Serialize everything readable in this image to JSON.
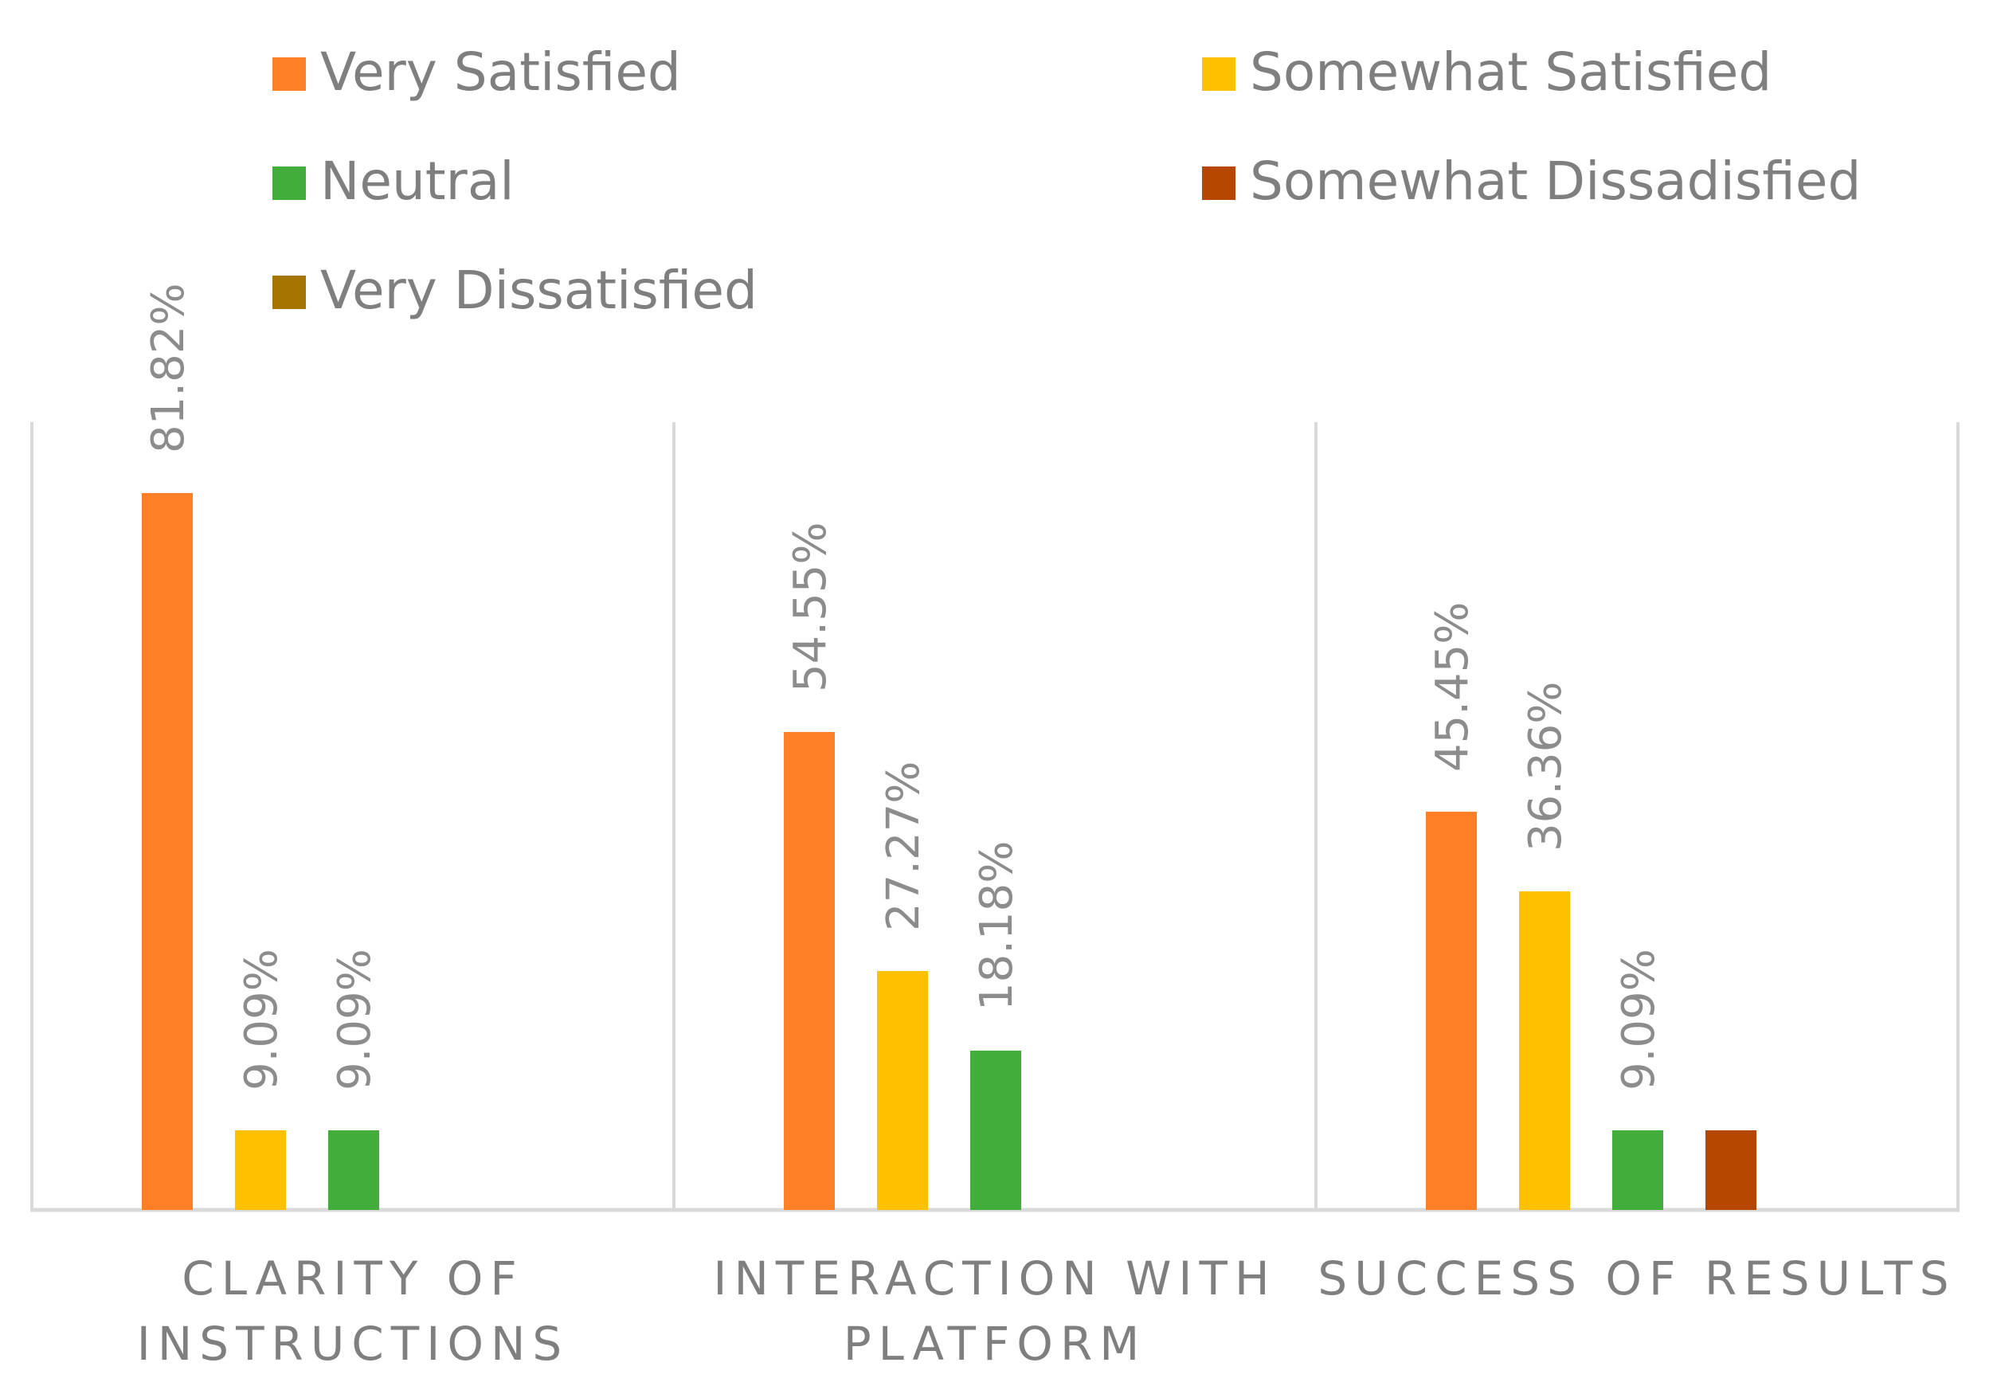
{
  "chart_data": {
    "type": "bar",
    "title": "",
    "xlabel": "",
    "ylabel": "",
    "ylim": [
      0,
      100
    ],
    "grid": false,
    "legend_position": "top",
    "categories": [
      "CLARITY OF INSTRUCTIONS",
      "INTERACTION WITH PLATFORM",
      "SUCCESS OF RESULTS"
    ],
    "category_lines": [
      [
        "CLARITY OF",
        "INSTRUCTIONS"
      ],
      [
        "INTERACTION WITH",
        "PLATFORM"
      ],
      [
        "SUCCESS OF RESULTS"
      ]
    ],
    "series": [
      {
        "name": "Very Satisfied",
        "color": "#FF7F27",
        "values": [
          81.82,
          54.55,
          45.45
        ],
        "labels": [
          "81.82%",
          "54.55%",
          "45.45%"
        ]
      },
      {
        "name": "Somewhat Satisfied",
        "color": "#FFC000",
        "values": [
          9.09,
          27.27,
          36.36
        ],
        "labels": [
          "9.09%",
          "27.27%",
          "36.36%"
        ]
      },
      {
        "name": "Neutral",
        "color": "#43AD3B",
        "values": [
          9.09,
          18.18,
          9.09
        ],
        "labels": [
          "9.09%",
          "18.18%",
          "9.09%"
        ]
      },
      {
        "name": "Somewhat Dissadisfied",
        "color": "#B54700",
        "values": [
          0,
          0,
          9.09
        ],
        "labels": [
          "",
          "",
          ""
        ]
      },
      {
        "name": "Very Dissatisfied",
        "color": "#A67400",
        "values": [
          0,
          0,
          0
        ],
        "labels": [
          "",
          "",
          ""
        ]
      }
    ],
    "axis_color": "#D9D9D9",
    "label_color": "#8C8C8C",
    "text_color": "#7F7F7F"
  }
}
